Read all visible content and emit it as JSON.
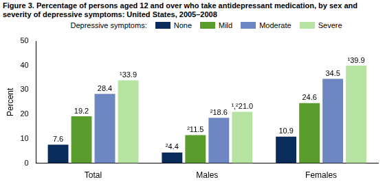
{
  "chart_data": {
    "type": "bar",
    "title": "Figure 3. Percentage of persons aged 12 and over who take antidepressant medication, by sex and severity of depressive symptoms: United States, 2005–2008",
    "y_label": "Percent",
    "legend_title": "Depressive symptoms:",
    "categories": [
      "Total",
      "Males",
      "Females"
    ],
    "series": [
      {
        "name": "None",
        "color": "#0a2c5a",
        "values": [
          7.6,
          4.4,
          10.9
        ],
        "value_labels": [
          "7.6",
          "²4.4",
          "10.9"
        ]
      },
      {
        "name": "Mild",
        "color": "#5b9c2e",
        "values": [
          19.2,
          11.5,
          24.6
        ],
        "value_labels": [
          "19.2",
          "²11.5",
          "24.6"
        ]
      },
      {
        "name": "Moderate",
        "color": "#6e86c2",
        "values": [
          28.4,
          18.6,
          34.5
        ],
        "value_labels": [
          "28.4",
          "²18.6",
          "34.5"
        ]
      },
      {
        "name": "Severe",
        "color": "#b6e3a1",
        "values": [
          33.9,
          21.0,
          39.9
        ],
        "value_labels": [
          "¹33.9",
          "¹,²21.0",
          "¹39.9"
        ]
      }
    ],
    "ylim": [
      0,
      50
    ],
    "yticks": [
      0,
      10,
      20,
      30,
      40,
      50
    ],
    "grid": false,
    "legend": "top",
    "data_labels": true
  }
}
